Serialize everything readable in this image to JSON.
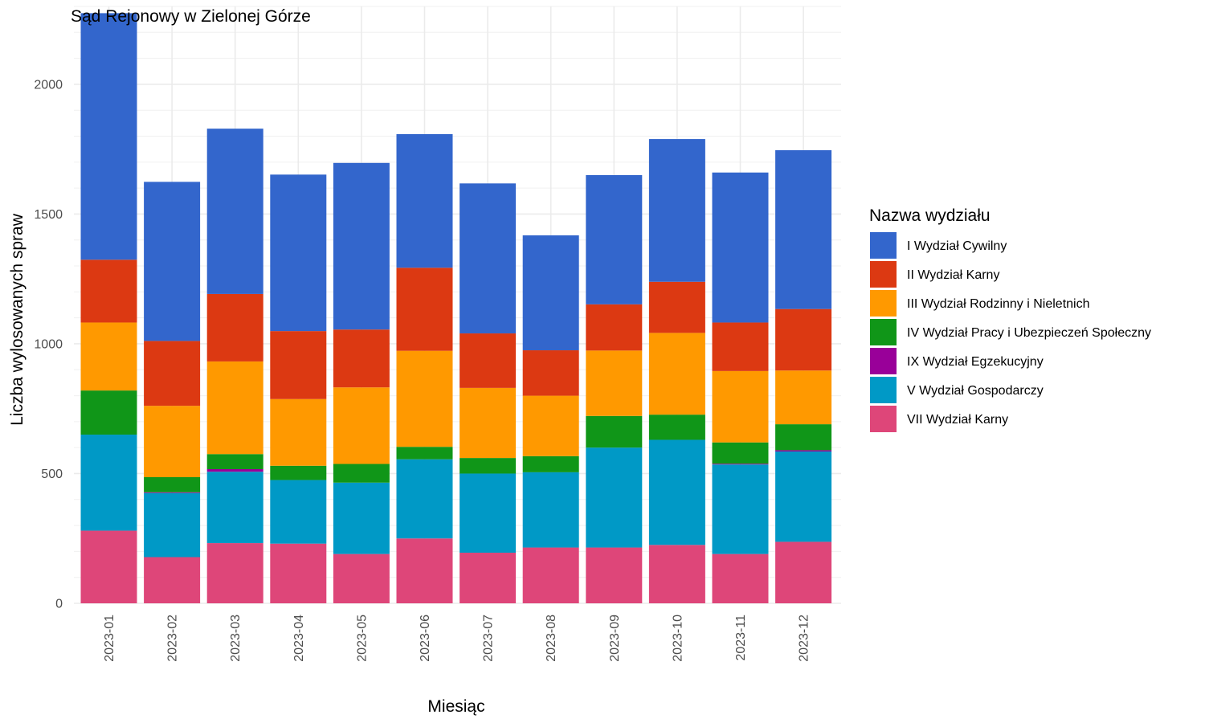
{
  "chart_data": {
    "type": "bar",
    "stacked": true,
    "title": "Sąd Rejonowy w Zielonej Górze",
    "xlabel": "Miesiąc",
    "ylabel": "Liczba wylosowanych spraw",
    "ylim": [
      0,
      2300
    ],
    "yticks": [
      0,
      500,
      1000,
      1500,
      2000
    ],
    "grid": true,
    "legend_title": "Nazwa wydziału",
    "legend_position": "right",
    "categories": [
      "2023-01",
      "2023-02",
      "2023-03",
      "2023-04",
      "2023-05",
      "2023-06",
      "2023-07",
      "2023-08",
      "2023-09",
      "2023-10",
      "2023-11",
      "2023-12"
    ],
    "series": [
      {
        "name": "VII Wydział Karny",
        "color": "#de4679",
        "values": [
          280,
          178,
          232,
          230,
          190,
          250,
          195,
          215,
          215,
          225,
          190,
          237
        ]
      },
      {
        "name": "V Wydział Gospodarczy",
        "color": "#0099c6",
        "values": [
          370,
          247,
          275,
          245,
          275,
          305,
          305,
          290,
          385,
          405,
          345,
          348
        ]
      },
      {
        "name": "IX Wydział Egzekucyjny",
        "color": "#990099",
        "values": [
          0,
          3,
          10,
          0,
          0,
          0,
          0,
          0,
          0,
          0,
          3,
          5
        ]
      },
      {
        "name": "IV Wydział Pracy i Ubezpieczeń Społeczny",
        "color": "#109618",
        "values": [
          170,
          58,
          58,
          55,
          72,
          48,
          60,
          62,
          122,
          97,
          82,
          100
        ]
      },
      {
        "name": "III Wydział Rodzinny i Nieletnich",
        "color": "#ff9900",
        "values": [
          262,
          275,
          357,
          257,
          295,
          370,
          270,
          233,
          252,
          315,
          275,
          207
        ]
      },
      {
        "name": "II Wydział Karny",
        "color": "#dc3912",
        "values": [
          242,
          250,
          260,
          262,
          223,
          320,
          210,
          175,
          178,
          197,
          187,
          237
        ]
      },
      {
        "name": "I Wydział Cywilny",
        "color": "#3366cc",
        "values": [
          950,
          613,
          637,
          603,
          642,
          515,
          578,
          443,
          498,
          550,
          578,
          612
        ]
      }
    ],
    "legend_order": [
      "I Wydział Cywilny",
      "II Wydział Karny",
      "III Wydział Rodzinny i Nieletnich",
      "IV Wydział Pracy i Ubezpieczeń Społeczny",
      "IX Wydział Egzekucyjny",
      "V Wydział Gospodarczy",
      "VII Wydział Karny"
    ]
  }
}
